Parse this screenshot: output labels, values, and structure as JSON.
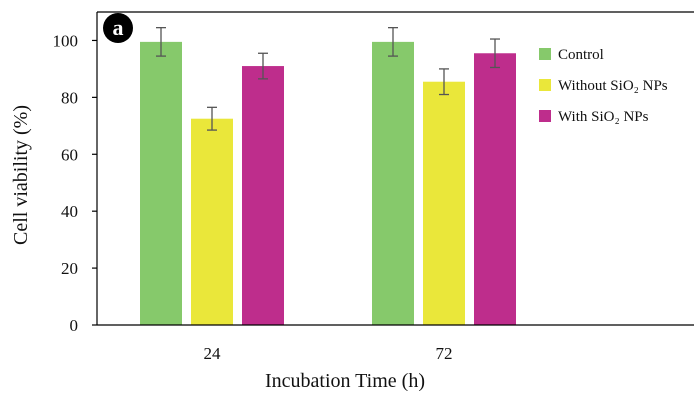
{
  "chart_data": {
    "type": "bar",
    "panel_label": "a",
    "xlabel": "Incubation Time (h)",
    "ylabel": "Cell viability (%)",
    "ylim": [
      0,
      110
    ],
    "yticks": [
      0,
      20,
      40,
      60,
      80,
      100
    ],
    "categories": [
      "24",
      "72"
    ],
    "series": [
      {
        "name": "Control",
        "color": "#86c96b",
        "values": [
          99.5,
          99.5
        ],
        "errors": [
          5,
          5
        ]
      },
      {
        "name": "Without SiO₂ NPs",
        "color": "#eae73a",
        "values": [
          72.5,
          85.5
        ],
        "errors": [
          4,
          4.5
        ]
      },
      {
        "name": "With SiO₂ NPs",
        "color": "#be2d8c",
        "values": [
          91,
          95.5
        ],
        "errors": [
          4.5,
          5
        ]
      }
    ],
    "error_bar_color": "#555555",
    "legend_position": "right",
    "grid": false
  }
}
